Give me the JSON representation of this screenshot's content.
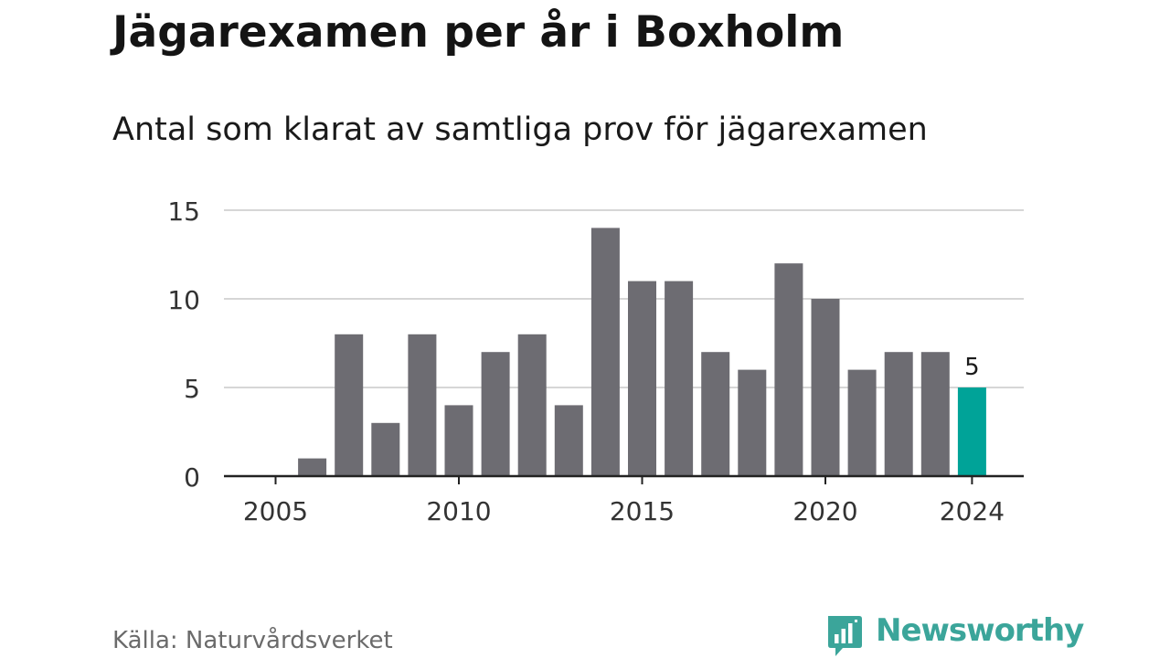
{
  "title": "Jägarexamen per år i Boxholm",
  "subtitle": "Antal som klarat av samtliga prov för jägarexamen",
  "source": "Källa: Naturvårdsverket",
  "brand": "Newsworthy",
  "colors": {
    "bar": "#6d6c72",
    "highlight": "#00a398",
    "grid": "#d6d6d6",
    "axis": "#222222",
    "brand": "#3ba59a"
  },
  "chart_data": {
    "type": "bar",
    "title": "Jägarexamen per år i Boxholm",
    "subtitle": "Antal som klarat av samtliga prov för jägarexamen",
    "xlabel": "",
    "ylabel": "",
    "categories": [
      "2005",
      "2006",
      "2007",
      "2008",
      "2009",
      "2010",
      "2011",
      "2012",
      "2013",
      "2014",
      "2015",
      "2016",
      "2017",
      "2018",
      "2019",
      "2020",
      "2021",
      "2022",
      "2023",
      "2024"
    ],
    "values": [
      0,
      1,
      8,
      3,
      8,
      4,
      7,
      8,
      4,
      14,
      11,
      11,
      7,
      6,
      12,
      10,
      6,
      7,
      7,
      5
    ],
    "highlight_category": "2024",
    "highlight_label": "5",
    "ylim": [
      0,
      15
    ],
    "y_ticks": [
      "0",
      "5",
      "10",
      "15"
    ],
    "x_ticks": [
      "2005",
      "2010",
      "2015",
      "2020",
      "2024"
    ],
    "grid": true,
    "legend": "none"
  }
}
